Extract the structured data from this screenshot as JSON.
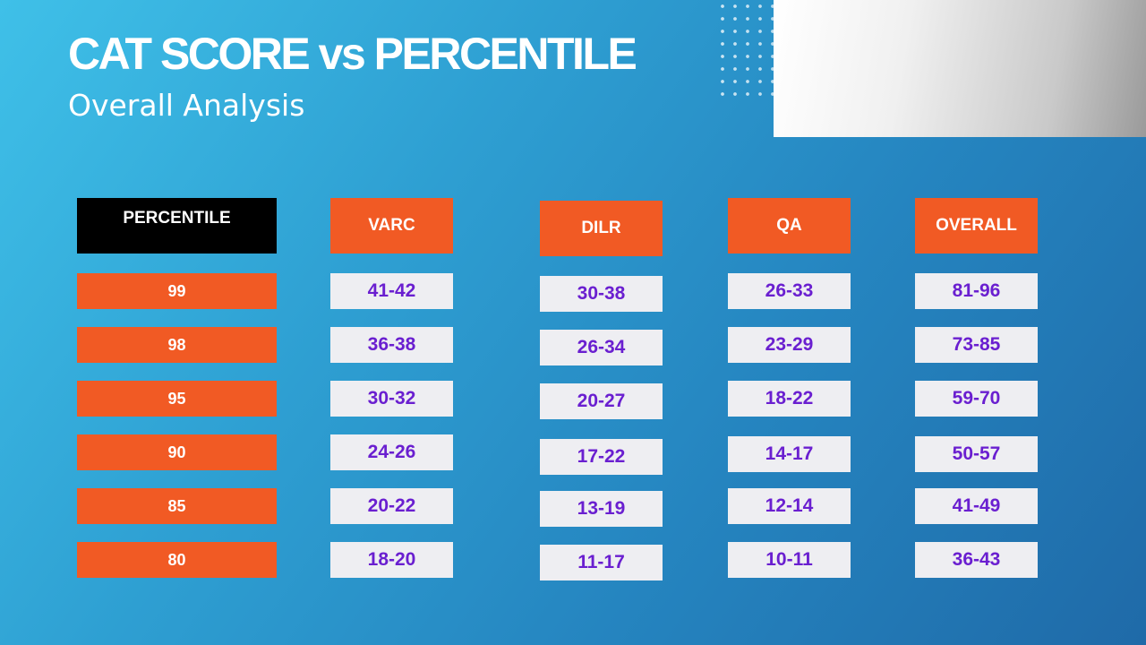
{
  "title": "CAT SCORE vs PERCENTILE",
  "subtitle": "Overall Analysis",
  "colors": {
    "accent": "#f15a24",
    "header_dark": "#000000",
    "value_text": "#6a1fd0",
    "value_bg": "#eeeef2",
    "background_start": "#3fc0e8",
    "background_end": "#1f6aa8"
  },
  "table": {
    "headers": [
      "PERCENTILE",
      "VARC",
      "DILR",
      "QA",
      "OVERALL"
    ],
    "percentiles": [
      "99",
      "98",
      "95",
      "90",
      "85",
      "80"
    ],
    "varc": [
      "41-42",
      "36-38",
      "30-32",
      "24-26",
      "20-22",
      "18-20"
    ],
    "dilr": [
      "30-38",
      "26-34",
      "20-27",
      "17-22",
      "13-19",
      "11-17"
    ],
    "qa": [
      "26-33",
      "23-29",
      "18-22",
      "14-17",
      "12-14",
      "10-11"
    ],
    "overall": [
      "81-96",
      "73-85",
      "59-70",
      "50-57",
      "41-49",
      "36-43"
    ]
  }
}
